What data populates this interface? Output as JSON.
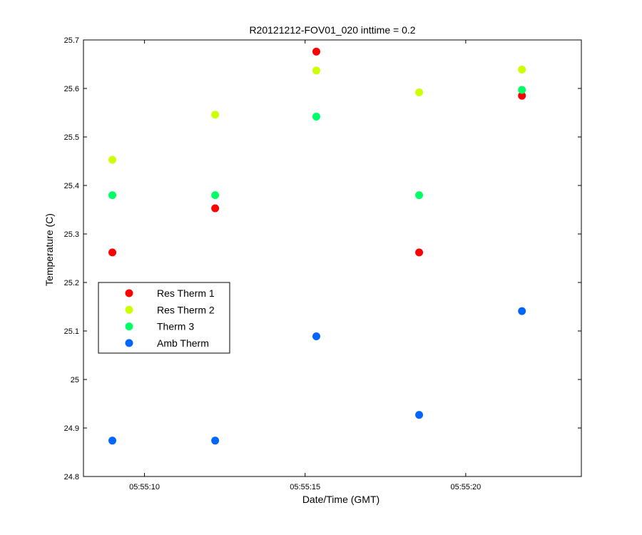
{
  "chart_data": {
    "type": "scatter",
    "title": "R20121212-FOV01_020 inttime = 0.2",
    "xlabel": "Date/Time (GMT)",
    "ylabel": "Temperature (C)",
    "x_unit": "seconds past 05:55:00 GMT",
    "xlim": [
      8.1,
      23.6
    ],
    "ylim": [
      24.8,
      25.7
    ],
    "x_ticks": [
      10,
      15,
      20
    ],
    "x_tick_labels": [
      "05:55:10",
      "05:55:15",
      "05:55:20"
    ],
    "y_ticks": [
      24.8,
      24.9,
      25.0,
      25.1,
      25.2,
      25.3,
      25.4,
      25.5,
      25.6,
      25.7
    ],
    "y_tick_labels": [
      "24.8",
      "24.9",
      "25",
      "25.1",
      "25.2",
      "25.3",
      "25.4",
      "25.5",
      "25.6",
      "25.7"
    ],
    "x": [
      9.0,
      12.2,
      15.35,
      18.55,
      21.75
    ],
    "series": [
      {
        "name": "Res Therm 1",
        "color": "#ff0000",
        "values": [
          25.262,
          25.353,
          25.676,
          25.262,
          25.585
        ]
      },
      {
        "name": "Res Therm 2",
        "color": "#ccff00",
        "values": [
          25.453,
          25.546,
          25.637,
          25.592,
          25.639
        ]
      },
      {
        "name": "Therm 3",
        "color": "#00ff66",
        "values": [
          25.38,
          25.38,
          25.542,
          25.38,
          25.597
        ]
      },
      {
        "name": "Amb Therm",
        "color": "#0066ff",
        "values": [
          24.874,
          24.874,
          25.089,
          24.927,
          25.141
        ]
      }
    ],
    "grid": false,
    "legend_position": "left-middle"
  }
}
